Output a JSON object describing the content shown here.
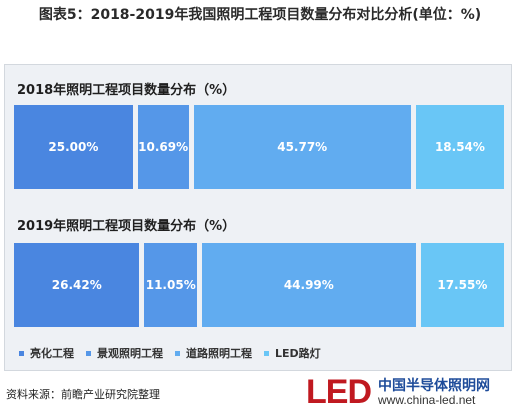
{
  "figure": {
    "title": "图表5：2018-2019年我国照明工程项目数量分布对比分析(单位：%)",
    "source": "资料来源：前瞻产业研究院整理",
    "logo": {
      "mark": "LED",
      "cn_name": "中国半导体照明网",
      "url": "www.china-led.net"
    }
  },
  "chart_data": {
    "type": "bar",
    "stacked": true,
    "orientation": "horizontal",
    "categories": [
      "2018年照明工程项目数量分布（%）",
      "2019年照明工程项目数量分布（%）"
    ],
    "series": [
      {
        "name": "亮化工程",
        "values": [
          25.0,
          26.42
        ],
        "labels": [
          "25.00%",
          "26.42%"
        ],
        "color": "#4a86e0"
      },
      {
        "name": "景观照明工程",
        "values": [
          10.69,
          11.05
        ],
        "labels": [
          "10.69%",
          "11.05%"
        ],
        "color": "#5597e8"
      },
      {
        "name": "道路照明工程",
        "values": [
          45.77,
          44.99
        ],
        "labels": [
          "45.77%",
          "44.99%"
        ],
        "color": "#61acf0"
      },
      {
        "name": "LED路灯",
        "values": [
          18.54,
          17.55
        ],
        "labels": [
          "18.54%",
          "17.55%"
        ],
        "color": "#69c6f6"
      }
    ],
    "total": 100,
    "legend": {
      "position": "bottom-left"
    }
  }
}
